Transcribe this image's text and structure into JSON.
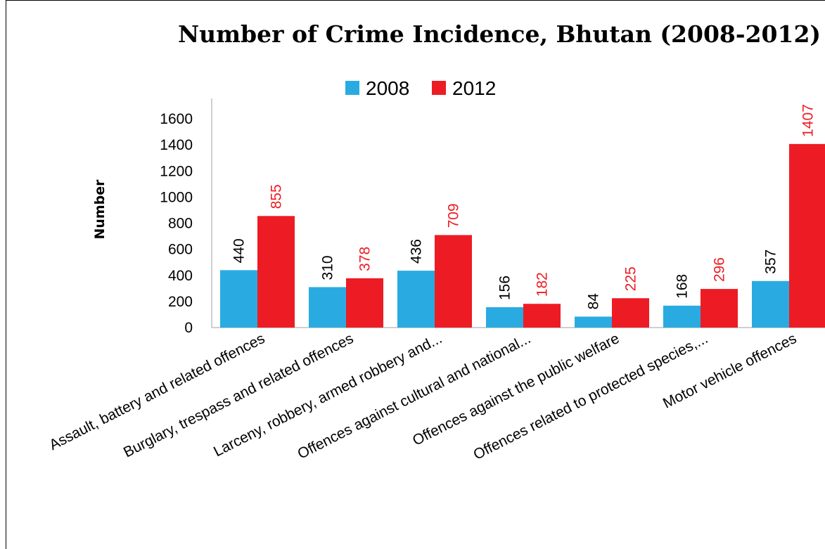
{
  "chart_data": {
    "type": "bar",
    "title": "Number of Crime Incidence, Bhutan (2008-2012)",
    "ylabel": "Number",
    "xlabel": "",
    "ylim": [
      0,
      1600
    ],
    "yticks": [
      0,
      200,
      400,
      600,
      800,
      1000,
      1200,
      1400,
      1600
    ],
    "grid": false,
    "legend_position": "top",
    "categories": [
      "Assault, battery and related offences",
      "Burglary, trespass and related offences",
      "Larceny, robbery, armed robbery and...",
      "Offences against cultural and national...",
      "Offences against the public welfare",
      "Offences related to protected species,...",
      "Motor vehicle offences"
    ],
    "series": [
      {
        "name": "2008",
        "color": "#29abe2",
        "label_color": "#000000",
        "values": [
          440,
          310,
          436,
          156,
          84,
          168,
          357
        ]
      },
      {
        "name": "2012",
        "color": "#ed1c24",
        "label_color": "#ed1c24",
        "values": [
          855,
          378,
          709,
          182,
          225,
          296,
          1407
        ]
      }
    ]
  }
}
